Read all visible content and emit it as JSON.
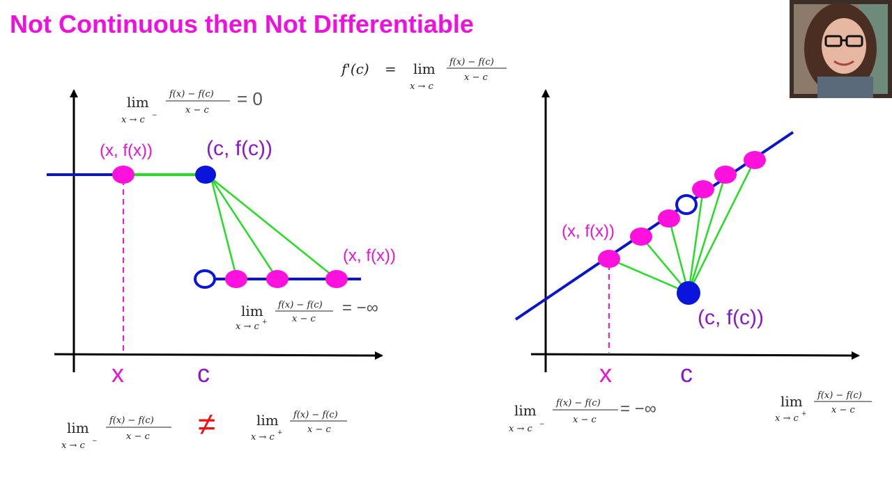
{
  "title": "Not Continuous then Not Differentiable",
  "colors": {
    "title": "#ee11dd",
    "axis": "#000000",
    "function_line": "#0a14c8",
    "secant_line": "#22dd22",
    "point_pink": "#ff11dd",
    "point_blue": "#0a14dd",
    "label_purple": "#8a18c8",
    "label_pink": "#e614d2",
    "not_equal": "#ee1111",
    "formula_gray": "#555555"
  },
  "icons": [
    "not-equal-symbol",
    "open-circle-marker",
    "filled-circle-marker"
  ],
  "definition": {
    "lhs": "f'(c)",
    "equals": "=",
    "lim": "lim",
    "sub": "x → c",
    "numerator": "f(x) − f(c)",
    "denominator": "x − c"
  },
  "left_graph": {
    "top_limit": {
      "lim": "lim",
      "sub": "x → c",
      "sub_sup": "−",
      "numerator": "f(x) − f(c)",
      "denominator": "x − c",
      "result": "= 0"
    },
    "label_xfx_top": "(x, f(x))",
    "label_cfc": "(c, f(c))",
    "label_xfx_bottom": "(x, f(x))",
    "right_limit": {
      "lim": "lim",
      "sub": "x → c",
      "sub_sup": "+",
      "numerator": "f(x) − f(c)",
      "denominator": "x − c",
      "result": "= −∞"
    },
    "axis_x_label": "x",
    "axis_c_label": "c"
  },
  "comparison": {
    "left": {
      "lim": "lim",
      "sub": "x → c",
      "sub_sup": "−",
      "numerator": "f(x) − f(c)",
      "denominator": "x − c"
    },
    "symbol": "≠",
    "right": {
      "lim": "lim",
      "sub": "x → c",
      "sub_sup": "+",
      "numerator": "f(x) − f(c)",
      "denominator": "x − c"
    }
  },
  "right_graph": {
    "label_xfx": "(x, f(x))",
    "label_cfc": "(c, f(c))",
    "axis_x_label": "x",
    "axis_c_label": "c",
    "left_limit": {
      "lim": "lim",
      "sub": "x → c",
      "sub_sup": "−",
      "numerator": "f(x) − f(c)",
      "denominator": "x − c",
      "result": "= −∞"
    },
    "right_limit": {
      "lim": "lim",
      "sub": "x → c",
      "sub_sup": "+",
      "numerator": "f(x) − f(c)",
      "denominator": "x − c"
    }
  }
}
